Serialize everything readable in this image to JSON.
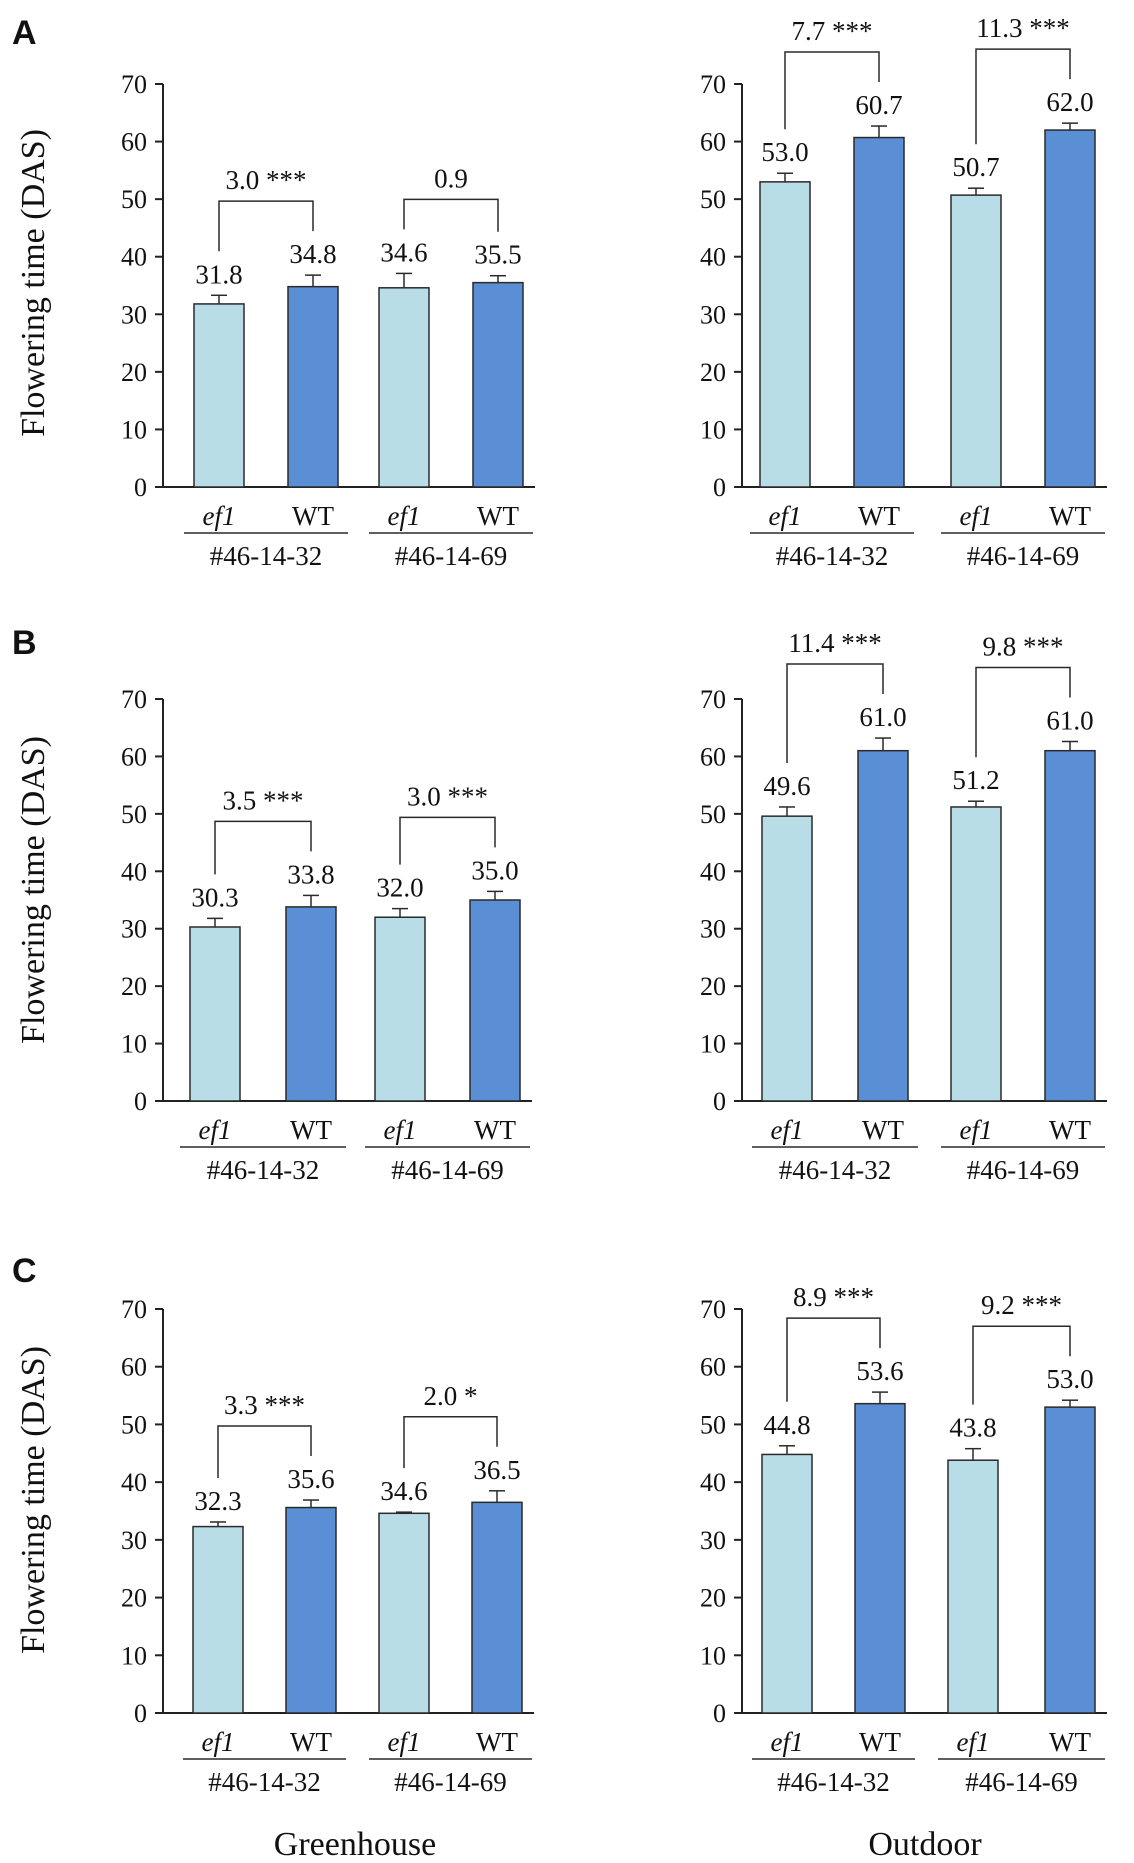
{
  "colors": {
    "mutant": "#b8dde6",
    "wildtype": "#5a8fd6",
    "axis": "#222222"
  },
  "condition_labels": [
    "Greenhouse",
    "Outdoor"
  ],
  "chart_data": [
    {
      "id": "A-greenhouse",
      "panel": "A",
      "type": "bar",
      "ylabel": "Flowering time (DAS)",
      "ylim": [
        0,
        70
      ],
      "yticks": [
        0,
        10,
        20,
        30,
        40,
        50,
        60,
        70
      ],
      "categories": [
        "ef1",
        "WT",
        "ef1",
        "WT"
      ],
      "lines": [
        "#46-14-32",
        "#46-14-69"
      ],
      "values": [
        31.8,
        34.8,
        34.6,
        35.5
      ],
      "errors": [
        1.5,
        2.0,
        2.5,
        1.2
      ],
      "value_labels": [
        "31.8",
        "34.8",
        "34.6",
        "35.5"
      ],
      "comparisons": [
        "3.0 ***",
        "0.9"
      ]
    },
    {
      "id": "A-outdoor",
      "panel": "",
      "type": "bar",
      "ylim": [
        0,
        70
      ],
      "yticks": [
        0,
        10,
        20,
        30,
        40,
        50,
        60,
        70
      ],
      "categories": [
        "ef1",
        "WT",
        "ef1",
        "WT"
      ],
      "lines": [
        "#46-14-32",
        "#46-14-69"
      ],
      "values": [
        53.0,
        60.7,
        50.7,
        62.0
      ],
      "errors": [
        1.5,
        2.0,
        1.2,
        1.2
      ],
      "value_labels": [
        "53.0",
        "60.7",
        "50.7",
        "62.0"
      ],
      "comparisons": [
        "7.7 ***",
        "11.3 ***"
      ]
    },
    {
      "id": "B-greenhouse",
      "panel": "B",
      "type": "bar",
      "ylabel": "Flowering time (DAS)",
      "ylim": [
        0,
        70
      ],
      "yticks": [
        0,
        10,
        20,
        30,
        40,
        50,
        60,
        70
      ],
      "categories": [
        "ef1",
        "WT",
        "ef1",
        "WT"
      ],
      "lines": [
        "#46-14-32",
        "#46-14-69"
      ],
      "values": [
        30.3,
        33.8,
        32.0,
        35.0
      ],
      "errors": [
        1.5,
        2.0,
        1.5,
        1.5
      ],
      "value_labels": [
        "30.3",
        "33.8",
        "32.0",
        "35.0"
      ],
      "comparisons": [
        "3.5 ***",
        "3.0 ***"
      ]
    },
    {
      "id": "B-outdoor",
      "panel": "",
      "type": "bar",
      "ylim": [
        0,
        70
      ],
      "yticks": [
        0,
        10,
        20,
        30,
        40,
        50,
        60,
        70
      ],
      "categories": [
        "ef1",
        "WT",
        "ef1",
        "WT"
      ],
      "lines": [
        "#46-14-32",
        "#46-14-69"
      ],
      "values": [
        49.6,
        61.0,
        51.2,
        61.0
      ],
      "errors": [
        1.6,
        2.2,
        1.0,
        1.6
      ],
      "value_labels": [
        "49.6",
        "61.0",
        "51.2",
        "61.0"
      ],
      "comparisons": [
        "11.4 ***",
        "9.8 ***"
      ]
    },
    {
      "id": "C-greenhouse",
      "panel": "C",
      "type": "bar",
      "ylabel": "Flowering time (DAS)",
      "ylim": [
        0,
        70
      ],
      "yticks": [
        0,
        10,
        20,
        30,
        40,
        50,
        60,
        70
      ],
      "categories": [
        "ef1",
        "WT",
        "ef1",
        "WT"
      ],
      "lines": [
        "#46-14-32",
        "#46-14-69"
      ],
      "values": [
        32.3,
        35.6,
        34.6,
        36.5
      ],
      "errors": [
        0.8,
        1.3,
        0.2,
        2.0
      ],
      "value_labels": [
        "32.3",
        "35.6",
        "34.6",
        "36.5"
      ],
      "comparisons": [
        "3.3 ***",
        "2.0 *"
      ]
    },
    {
      "id": "C-outdoor",
      "panel": "",
      "type": "bar",
      "ylim": [
        0,
        70
      ],
      "yticks": [
        0,
        10,
        20,
        30,
        40,
        50,
        60,
        70
      ],
      "categories": [
        "ef1",
        "WT",
        "ef1",
        "WT"
      ],
      "lines": [
        "#46-14-32",
        "#46-14-69"
      ],
      "values": [
        44.8,
        53.6,
        43.8,
        53.0
      ],
      "errors": [
        1.5,
        2.0,
        2.0,
        1.2
      ],
      "value_labels": [
        "44.8",
        "53.6",
        "43.8",
        "53.0"
      ],
      "comparisons": [
        "8.9 ***",
        "9.2 ***"
      ]
    }
  ]
}
